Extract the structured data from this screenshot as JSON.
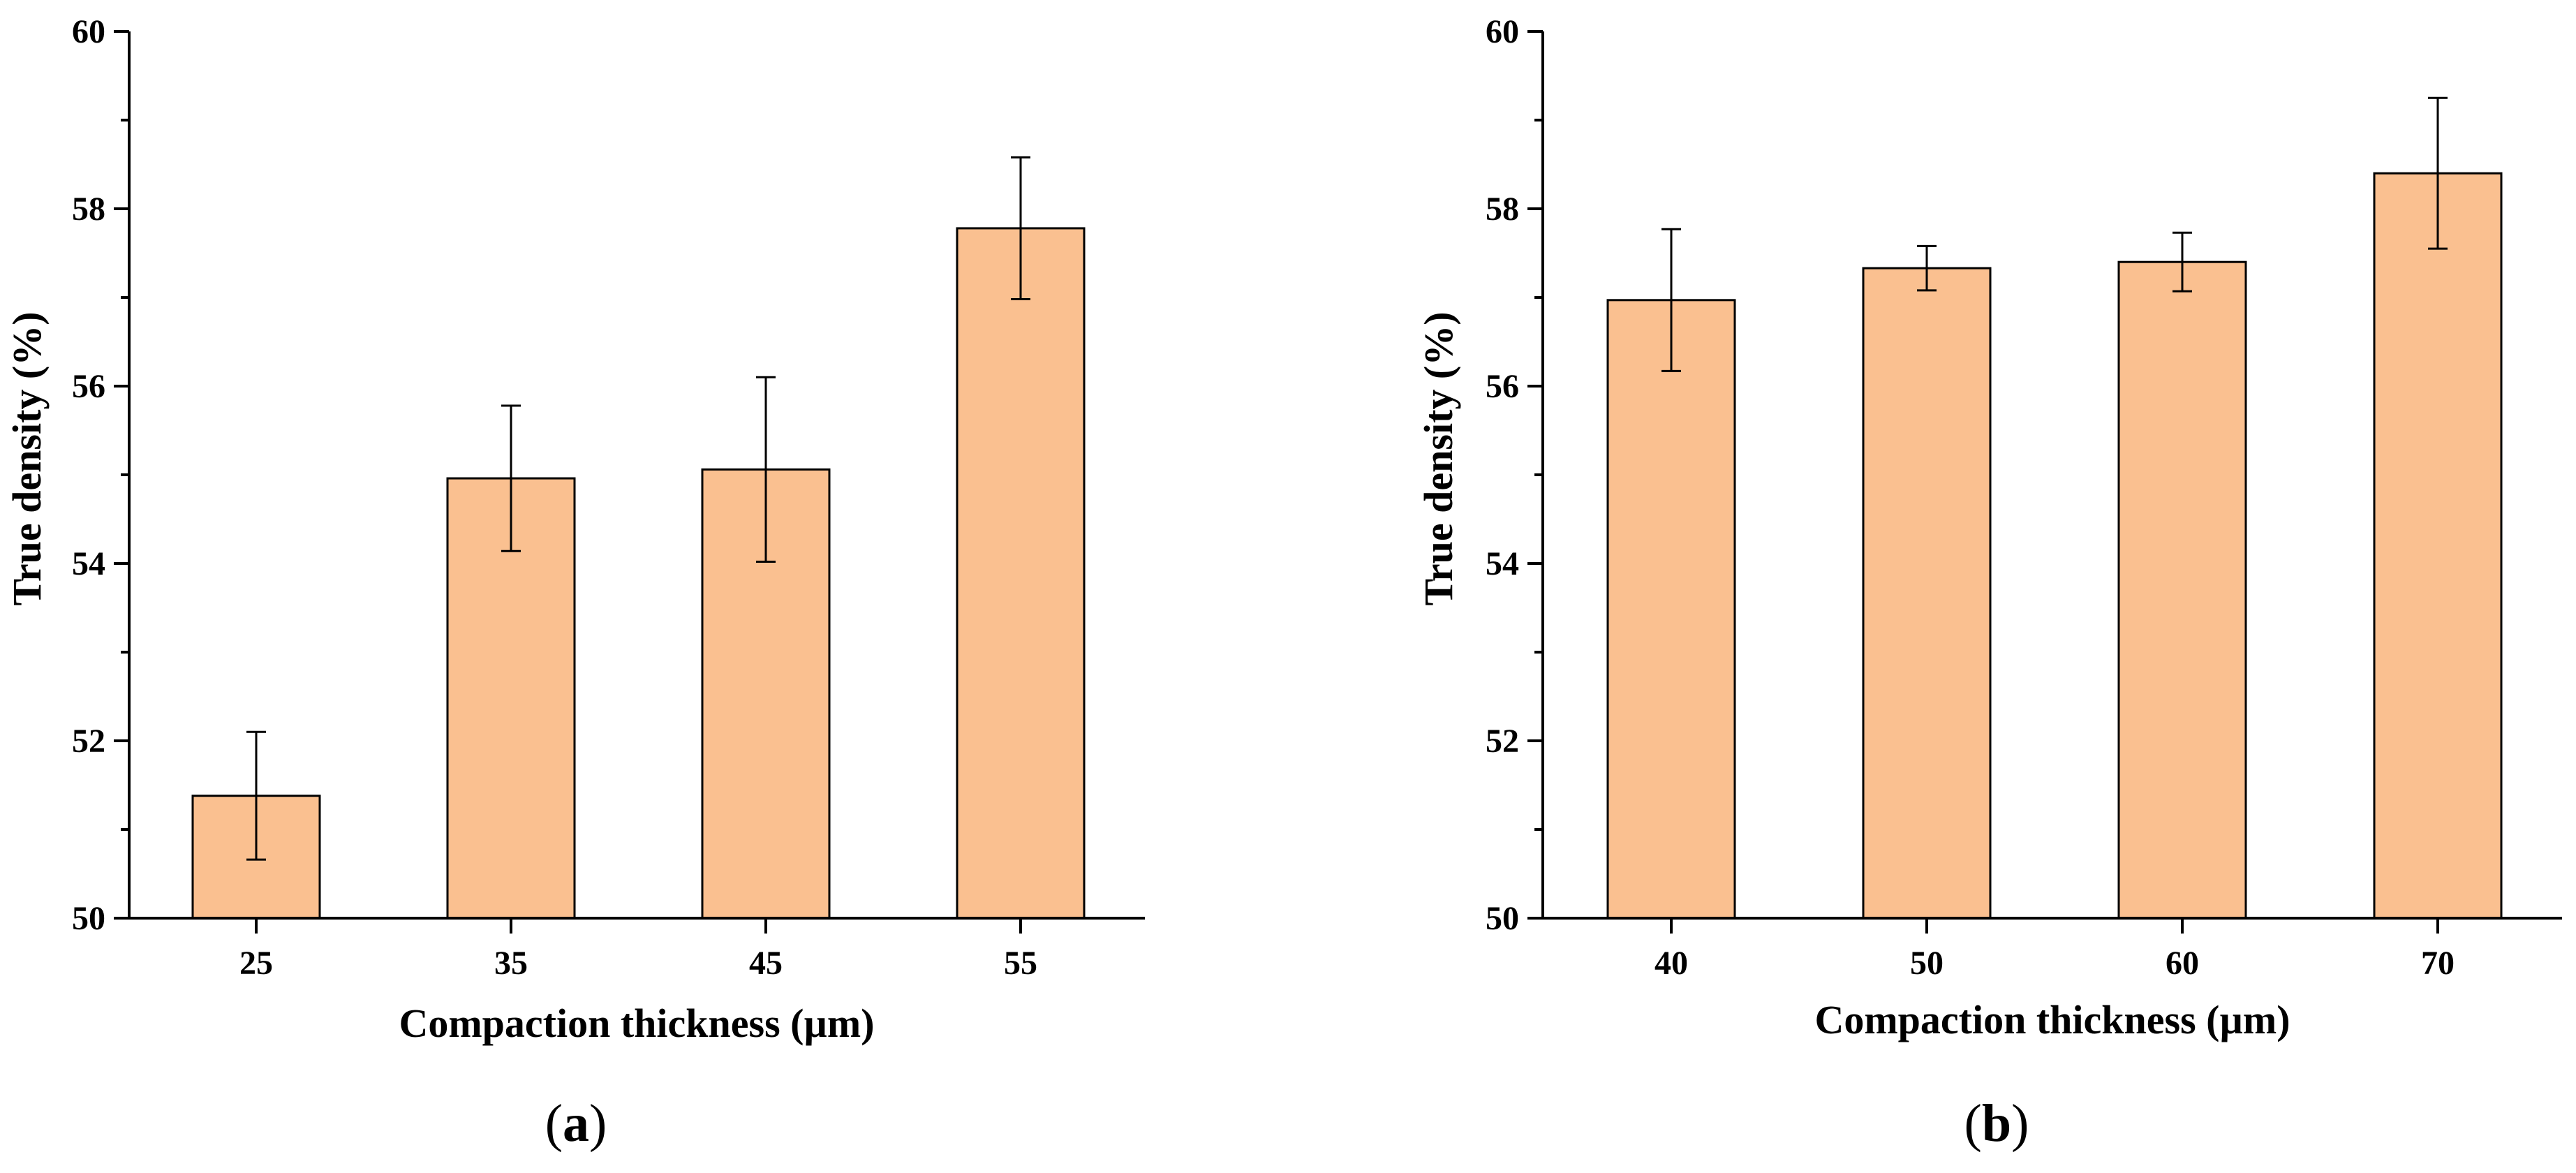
{
  "colors": {
    "bar_fill": "#FAC090",
    "axis": "#000000"
  },
  "chart_data": [
    {
      "panel": "a",
      "panel_label": {
        "open": "(",
        "letter": "a",
        "close": ")"
      },
      "type": "bar",
      "categories": [
        "25",
        "35",
        "45",
        "55"
      ],
      "values": [
        51.38,
        54.96,
        55.06,
        57.78
      ],
      "error": [
        0.72,
        0.82,
        1.04,
        0.8
      ],
      "xlabel": "Compaction thickness (µm)",
      "ylabel": "True density (%)",
      "ylim": [
        50,
        60
      ],
      "yticks": [
        50,
        52,
        54,
        56,
        58,
        60
      ]
    },
    {
      "panel": "b",
      "panel_label": {
        "open": "(",
        "letter": "b",
        "close": ")"
      },
      "type": "bar",
      "categories": [
        "40",
        "50",
        "60",
        "70"
      ],
      "values": [
        56.97,
        57.33,
        57.4,
        58.4
      ],
      "error": [
        0.8,
        0.25,
        0.33,
        0.85
      ],
      "xlabel": "Compaction thickness (µm)",
      "ylabel": "True density (%)",
      "ylim": [
        50,
        60
      ],
      "yticks": [
        50,
        52,
        54,
        56,
        58,
        60
      ]
    }
  ]
}
